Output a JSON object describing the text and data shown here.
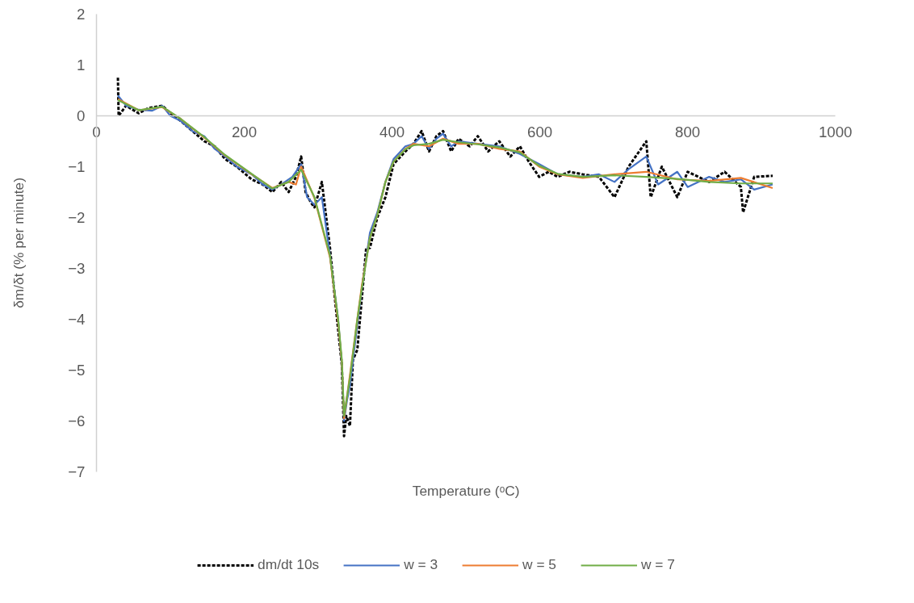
{
  "chart_data": {
    "type": "line",
    "xlabel": "Temperature (ᵒC)",
    "ylabel": "δm/δt (% per minute)",
    "xlim": [
      0,
      1000
    ],
    "xticks": [
      0,
      200,
      400,
      600,
      800,
      1000
    ],
    "ylim": [
      -7,
      2
    ],
    "yticks": [
      -7,
      -6,
      -5,
      -4,
      -3,
      -2,
      -1,
      0,
      1,
      2
    ],
    "grid": false,
    "legend": "bottom",
    "series": [
      {
        "name": "dm/dt 10s",
        "color": "#000000",
        "line_style": "dashed",
        "x": [
          29,
          30,
          40,
          57,
          70,
          89,
          100,
          114,
          130,
          146,
          160,
          174,
          190,
          210,
          225,
          238,
          250,
          260,
          270,
          277,
          283,
          290,
          295,
          305,
          316,
          322,
          327,
          332,
          335,
          338,
          343,
          347,
          353,
          359,
          365,
          370,
          380,
          391,
          402,
          418,
          429,
          440,
          450,
          460,
          469,
          480,
          490,
          505,
          516,
          530,
          545,
          560,
          573,
          585,
          599,
          612,
          624,
          640,
          658,
          680,
          701,
          720,
          744,
          750,
          765,
          786,
          800,
          829,
          850,
          872,
          875,
          890,
          915
        ],
        "values": [
          0.75,
          0.0,
          0.2,
          0.05,
          0.15,
          0.2,
          0.05,
          -0.1,
          -0.3,
          -0.5,
          -0.6,
          -0.85,
          -1.0,
          -1.25,
          -1.35,
          -1.5,
          -1.3,
          -1.5,
          -1.2,
          -0.8,
          -1.5,
          -1.7,
          -1.8,
          -1.3,
          -2.6,
          -3.5,
          -4.2,
          -4.9,
          -6.3,
          -5.9,
          -6.1,
          -4.8,
          -4.6,
          -3.6,
          -2.6,
          -2.6,
          -2.0,
          -1.6,
          -0.95,
          -0.7,
          -0.55,
          -0.3,
          -0.7,
          -0.4,
          -0.3,
          -0.7,
          -0.45,
          -0.6,
          -0.4,
          -0.7,
          -0.5,
          -0.8,
          -0.6,
          -0.9,
          -1.2,
          -1.1,
          -1.2,
          -1.1,
          -1.15,
          -1.2,
          -1.6,
          -1.0,
          -0.5,
          -1.6,
          -1.0,
          -1.6,
          -1.1,
          -1.3,
          -1.1,
          -1.4,
          -1.9,
          -1.2,
          -1.18
        ]
      },
      {
        "name": "w = 3",
        "color": "#4472c4",
        "line_style": "solid",
        "x": [
          29,
          40,
          57,
          75,
          89,
          100,
          114,
          130,
          146,
          160,
          174,
          190,
          210,
          225,
          238,
          255,
          265,
          277,
          285,
          295,
          305,
          316,
          327,
          332,
          335,
          339,
          343,
          353,
          359,
          370,
          380,
          391,
          402,
          418,
          429,
          440,
          450,
          460,
          469,
          480,
          490,
          516,
          545,
          573,
          599,
          624,
          658,
          680,
          701,
          720,
          744,
          760,
          786,
          800,
          829,
          850,
          872,
          890,
          915
        ],
        "values": [
          0.4,
          0.2,
          0.12,
          0.1,
          0.2,
          0.0,
          -0.1,
          -0.3,
          -0.4,
          -0.65,
          -0.8,
          -1.0,
          -1.15,
          -1.35,
          -1.45,
          -1.3,
          -1.2,
          -0.95,
          -1.6,
          -1.75,
          -1.6,
          -2.75,
          -4.0,
          -4.9,
          -6.0,
          -5.6,
          -5.3,
          -4.1,
          -3.4,
          -2.3,
          -1.9,
          -1.3,
          -0.85,
          -0.6,
          -0.55,
          -0.4,
          -0.65,
          -0.45,
          -0.35,
          -0.6,
          -0.5,
          -0.55,
          -0.6,
          -0.75,
          -0.95,
          -1.15,
          -1.2,
          -1.15,
          -1.3,
          -1.05,
          -0.8,
          -1.35,
          -1.1,
          -1.4,
          -1.2,
          -1.3,
          -1.25,
          -1.45,
          -1.35
        ]
      },
      {
        "name": "w = 5",
        "color": "#ed7d31",
        "line_style": "solid",
        "x": [
          29,
          57,
          89,
          114,
          146,
          174,
          210,
          238,
          260,
          270,
          277,
          295,
          316,
          327,
          332,
          335,
          343,
          353,
          359,
          370,
          380,
          391,
          402,
          418,
          429,
          450,
          469,
          490,
          516,
          545,
          573,
          599,
          624,
          658,
          701,
          744,
          786,
          829,
          872,
          915
        ],
        "values": [
          0.33,
          0.11,
          0.17,
          -0.06,
          -0.43,
          -0.78,
          -1.15,
          -1.42,
          -1.3,
          -1.35,
          -1.0,
          -1.62,
          -2.78,
          -4.05,
          -4.85,
          -5.95,
          -5.1,
          -4.0,
          -3.35,
          -2.4,
          -1.95,
          -1.3,
          -0.9,
          -0.65,
          -0.55,
          -0.6,
          -0.45,
          -0.55,
          -0.55,
          -0.65,
          -0.7,
          -1.0,
          -1.15,
          -1.22,
          -1.15,
          -1.1,
          -1.25,
          -1.28,
          -1.22,
          -1.42
        ]
      },
      {
        "name": "w = 7",
        "color": "#70ad47",
        "line_style": "solid",
        "x": [
          29,
          57,
          89,
          114,
          146,
          174,
          210,
          238,
          260,
          277,
          295,
          316,
          327,
          332,
          335,
          343,
          353,
          359,
          370,
          380,
          391,
          402,
          418,
          429,
          450,
          469,
          490,
          516,
          545,
          573,
          599,
          624,
          658,
          701,
          744,
          786,
          829,
          872,
          915
        ],
        "values": [
          0.31,
          0.11,
          0.18,
          -0.06,
          -0.42,
          -0.77,
          -1.14,
          -1.43,
          -1.3,
          -1.06,
          -1.6,
          -2.75,
          -4.0,
          -4.8,
          -5.9,
          -5.15,
          -4.0,
          -3.4,
          -2.4,
          -1.95,
          -1.3,
          -0.9,
          -0.66,
          -0.58,
          -0.55,
          -0.47,
          -0.52,
          -0.56,
          -0.62,
          -0.72,
          -0.98,
          -1.14,
          -1.2,
          -1.17,
          -1.2,
          -1.24,
          -1.3,
          -1.33,
          -1.33
        ]
      }
    ]
  }
}
